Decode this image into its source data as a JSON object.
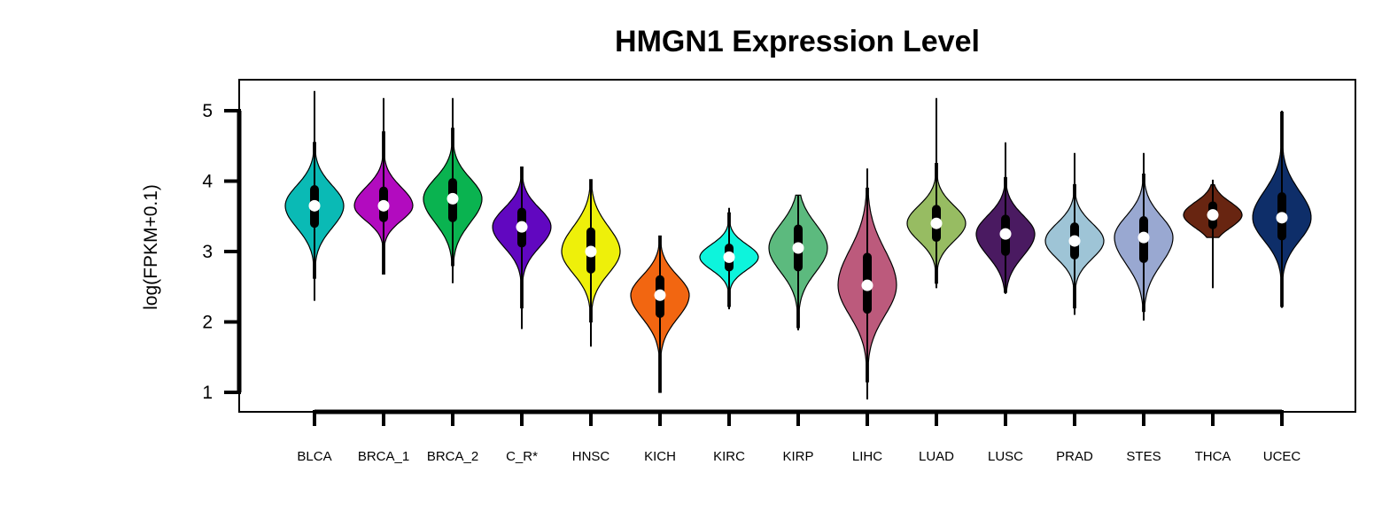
{
  "chart_data": {
    "type": "violin",
    "title": "HMGN1 Expression Level",
    "xlabel": "",
    "ylabel": "log(FPKM+0.1)",
    "ylim": [
      0.75,
      5.45
    ],
    "yticks": [
      1,
      2,
      3,
      4,
      5
    ],
    "categories": [
      "BLCA",
      "BRCA_1",
      "BRCA_2",
      "C_R*",
      "HNSC",
      "KICH",
      "KIRC",
      "KIRP",
      "LIHC",
      "LUAD",
      "LUSC",
      "PRAD",
      "STES",
      "THCA",
      "UCEC"
    ],
    "series": [
      {
        "category": "BLCA",
        "color": "#0ABAB5",
        "median": 3.65,
        "q1": 3.4,
        "q3": 3.88,
        "min": 2.3,
        "max": 5.28,
        "vmin": 2.62,
        "vmax": 4.55
      },
      {
        "category": "BRCA_1",
        "color": "#B20BBF",
        "median": 3.65,
        "q1": 3.48,
        "q3": 3.86,
        "min": 2.68,
        "max": 5.18,
        "vmin": 2.68,
        "vmax": 4.7
      },
      {
        "category": "BRCA_2",
        "color": "#0AB350",
        "median": 3.75,
        "q1": 3.48,
        "q3": 3.98,
        "min": 2.55,
        "max": 5.18,
        "vmin": 2.8,
        "vmax": 4.75
      },
      {
        "category": "C_R*",
        "color": "#6107C0",
        "median": 3.35,
        "q1": 3.12,
        "q3": 3.56,
        "min": 1.9,
        "max": 4.2,
        "vmin": 2.2,
        "vmax": 4.2
      },
      {
        "category": "HNSC",
        "color": "#EEF00A",
        "median": 3.0,
        "q1": 2.75,
        "q3": 3.28,
        "min": 1.65,
        "max": 4.02,
        "vmin": 2.0,
        "vmax": 4.02
      },
      {
        "category": "KICH",
        "color": "#F26611",
        "median": 2.38,
        "q1": 2.12,
        "q3": 2.6,
        "min": 1.0,
        "max": 3.22,
        "vmin": 1.0,
        "vmax": 3.22
      },
      {
        "category": "KIRC",
        "color": "#0DF4DC",
        "median": 2.92,
        "q1": 2.78,
        "q3": 3.05,
        "min": 2.18,
        "max": 3.62,
        "vmin": 2.22,
        "vmax": 3.55
      },
      {
        "category": "KIRP",
        "color": "#5CBA7E",
        "median": 3.05,
        "q1": 2.78,
        "q3": 3.32,
        "min": 1.88,
        "max": 3.8,
        "vmin": 1.92,
        "vmax": 3.8
      },
      {
        "category": "LIHC",
        "color": "#BC5A7C",
        "median": 2.52,
        "q1": 2.18,
        "q3": 2.92,
        "min": 0.9,
        "max": 4.18,
        "vmin": 1.15,
        "vmax": 3.9
      },
      {
        "category": "LUAD",
        "color": "#97BC62",
        "median": 3.4,
        "q1": 3.2,
        "q3": 3.6,
        "min": 2.48,
        "max": 5.18,
        "vmin": 2.55,
        "vmax": 4.25
      },
      {
        "category": "LUSC",
        "color": "#4A1A61",
        "median": 3.25,
        "q1": 3.0,
        "q3": 3.46,
        "min": 2.4,
        "max": 4.55,
        "vmin": 2.42,
        "vmax": 4.05
      },
      {
        "category": "PRAD",
        "color": "#9EC4D6",
        "median": 3.15,
        "q1": 2.95,
        "q3": 3.35,
        "min": 2.1,
        "max": 4.4,
        "vmin": 2.2,
        "vmax": 3.95
      },
      {
        "category": "STES",
        "color": "#99A8D1",
        "median": 3.2,
        "q1": 2.9,
        "q3": 3.44,
        "min": 2.02,
        "max": 4.4,
        "vmin": 2.15,
        "vmax": 4.1
      },
      {
        "category": "THCA",
        "color": "#682511",
        "median": 3.52,
        "q1": 3.38,
        "q3": 3.65,
        "min": 2.48,
        "max": 4.02,
        "vmin": 3.2,
        "vmax": 3.95
      },
      {
        "category": "UCEC",
        "color": "#0E2E69",
        "median": 3.48,
        "q1": 3.22,
        "q3": 3.78,
        "min": 2.2,
        "max": 5.0,
        "vmin": 2.22,
        "vmax": 4.98
      }
    ],
    "grid": false,
    "legend": "none"
  }
}
